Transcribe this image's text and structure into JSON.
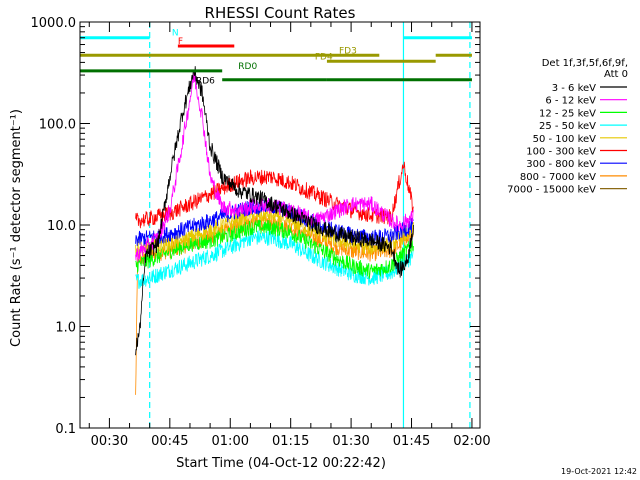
{
  "chart_data": {
    "type": "line",
    "title": "RHESSI Count Rates",
    "xlabel": "Start Time (04-Oct-12 00:22:42)",
    "ylabel": "Count Rate (s⁻¹ detector segment⁻¹)",
    "y_scale": "log",
    "ylim": [
      0.1,
      1000.0
    ],
    "xlim": [
      "00:22:42",
      "02:02:00"
    ],
    "y_ticks": [
      "0.1",
      "1.0",
      "10.0",
      "100.0",
      "1000.0"
    ],
    "x_ticks": [
      "00:30",
      "00:45",
      "01:00",
      "01:15",
      "01:30",
      "01:45",
      "02:00"
    ],
    "legend_header": [
      "Det 1f,3f,5f,6f,9f,",
      "Att 0"
    ],
    "legend_position": "right",
    "timestamp": "19-Oct-2021 12:42",
    "series": [
      {
        "name": "3 - 6 keV",
        "color": "#000000",
        "points": [
          [
            "00:36:30",
            0.6
          ],
          [
            "00:37:30",
            0.9
          ],
          [
            "00:39:00",
            5.0
          ],
          [
            "00:42:00",
            6.5
          ],
          [
            "00:45:00",
            30
          ],
          [
            "00:48:00",
            120
          ],
          [
            "00:51:00",
            330
          ],
          [
            "00:53:00",
            200
          ],
          [
            "00:55:00",
            60
          ],
          [
            "00:58:00",
            30
          ],
          [
            "01:02:00",
            22
          ],
          [
            "01:08:00",
            18
          ],
          [
            "01:15:00",
            13
          ],
          [
            "01:21:00",
            10
          ],
          [
            "01:25:00",
            8.5
          ],
          [
            "01:30:00",
            7.5
          ],
          [
            "01:35:00",
            7
          ],
          [
            "01:40:00",
            6
          ],
          [
            "01:42:00",
            3.5
          ],
          [
            "01:44:00",
            4.5
          ],
          [
            "01:45:30",
            10
          ]
        ]
      },
      {
        "name": "6 - 12 keV",
        "color": "#ff00ff",
        "points": [
          [
            "00:36:30",
            5.0
          ],
          [
            "00:39:00",
            6.0
          ],
          [
            "00:42:00",
            7.5
          ],
          [
            "00:45:00",
            14
          ],
          [
            "00:48:00",
            60
          ],
          [
            "00:51:00",
            300
          ],
          [
            "00:53:00",
            120
          ],
          [
            "00:55:00",
            30
          ],
          [
            "00:58:00",
            15
          ],
          [
            "01:02:00",
            14
          ],
          [
            "01:08:00",
            16
          ],
          [
            "01:15:00",
            14
          ],
          [
            "01:21:00",
            11
          ],
          [
            "01:25:00",
            13
          ],
          [
            "01:30:00",
            16
          ],
          [
            "01:35:00",
            16
          ],
          [
            "01:40:00",
            11
          ],
          [
            "01:42:00",
            10
          ],
          [
            "01:45:30",
            12
          ]
        ]
      },
      {
        "name": "12 - 25 keV",
        "color": "#00ff00",
        "points": [
          [
            "00:36:30",
            4.0
          ],
          [
            "00:40:00",
            4.5
          ],
          [
            "00:45:00",
            5.5
          ],
          [
            "00:50:00",
            6.5
          ],
          [
            "00:55:00",
            7.0
          ],
          [
            "01:00:00",
            8.0
          ],
          [
            "01:05:00",
            9.5
          ],
          [
            "01:10:00",
            9.5
          ],
          [
            "01:15:00",
            8.5
          ],
          [
            "01:20:00",
            6.5
          ],
          [
            "01:25:00",
            5.0
          ],
          [
            "01:30:00",
            4.0
          ],
          [
            "01:35:00",
            3.5
          ],
          [
            "01:40:00",
            4.0
          ],
          [
            "01:45:30",
            6.5
          ]
        ]
      },
      {
        "name": "25 - 50 keV",
        "color": "#00ffff",
        "points": [
          [
            "00:36:30",
            2.8
          ],
          [
            "00:40:00",
            3.0
          ],
          [
            "00:45:00",
            3.6
          ],
          [
            "00:50:00",
            4.2
          ],
          [
            "00:55:00",
            5.0
          ],
          [
            "01:00:00",
            6.0
          ],
          [
            "01:05:00",
            7.5
          ],
          [
            "01:10:00",
            7.5
          ],
          [
            "01:15:00",
            6.5
          ],
          [
            "01:20:00",
            5.0
          ],
          [
            "01:25:00",
            4.0
          ],
          [
            "01:30:00",
            3.3
          ],
          [
            "01:35:00",
            3.0
          ],
          [
            "01:40:00",
            3.4
          ],
          [
            "01:45:30",
            5.0
          ]
        ]
      },
      {
        "name": "50 - 100 keV",
        "color": "#e6c800",
        "points": [
          [
            "00:36:30",
            5.8
          ],
          [
            "00:40:00",
            6.0
          ],
          [
            "00:45:00",
            6.5
          ],
          [
            "00:50:00",
            7.5
          ],
          [
            "00:55:00",
            9.0
          ],
          [
            "01:00:00",
            10.5
          ],
          [
            "01:05:00",
            12.5
          ],
          [
            "01:10:00",
            12.5
          ],
          [
            "01:15:00",
            11
          ],
          [
            "01:20:00",
            9.0
          ],
          [
            "01:25:00",
            7.5
          ],
          [
            "01:30:00",
            6.5
          ],
          [
            "01:35:00",
            6.0
          ],
          [
            "01:40:00",
            6.5
          ],
          [
            "01:45:30",
            9.0
          ]
        ]
      },
      {
        "name": "100 - 300 keV",
        "color": "#ff0000",
        "points": [
          [
            "00:36:30",
            11
          ],
          [
            "00:40:00",
            11.5
          ],
          [
            "00:45:00",
            13
          ],
          [
            "00:50:00",
            16
          ],
          [
            "00:55:00",
            20
          ],
          [
            "01:00:00",
            25
          ],
          [
            "01:05:00",
            29
          ],
          [
            "01:10:00",
            30
          ],
          [
            "01:15:00",
            26
          ],
          [
            "01:20:00",
            21
          ],
          [
            "01:25:00",
            17
          ],
          [
            "01:30:00",
            14
          ],
          [
            "01:35:00",
            12.5
          ],
          [
            "01:40:00",
            12
          ],
          [
            "01:43:00",
            40
          ],
          [
            "01:45:30",
            14
          ]
        ]
      },
      {
        "name": "300 - 800 keV",
        "color": "#0000ff",
        "points": [
          [
            "00:36:30",
            7.2
          ],
          [
            "00:40:00",
            7.5
          ],
          [
            "00:45:00",
            8.2
          ],
          [
            "00:50:00",
            9.5
          ],
          [
            "00:55:00",
            11
          ],
          [
            "01:00:00",
            13
          ],
          [
            "01:05:00",
            15
          ],
          [
            "01:10:00",
            15.5
          ],
          [
            "01:15:00",
            13.5
          ],
          [
            "01:20:00",
            11
          ],
          [
            "01:25:00",
            9.0
          ],
          [
            "01:30:00",
            8.0
          ],
          [
            "01:35:00",
            7.5
          ],
          [
            "01:40:00",
            7.8
          ],
          [
            "01:45:30",
            10
          ]
        ]
      },
      {
        "name": "800 - 7000 keV",
        "color": "#ff8c00",
        "points": [
          [
            "00:36:30",
            0.2
          ],
          [
            "00:37:00",
            4.5
          ],
          [
            "00:40:00",
            5.0
          ],
          [
            "00:45:00",
            5.6
          ],
          [
            "00:50:00",
            6.5
          ],
          [
            "00:55:00",
            7.5
          ],
          [
            "01:00:00",
            9.0
          ],
          [
            "01:05:00",
            10.5
          ],
          [
            "01:10:00",
            10.5
          ],
          [
            "01:15:00",
            9.5
          ],
          [
            "01:20:00",
            7.8
          ],
          [
            "01:25:00",
            6.3
          ],
          [
            "01:30:00",
            5.5
          ],
          [
            "01:35:00",
            5.2
          ],
          [
            "01:40:00",
            5.6
          ],
          [
            "01:45:30",
            8.0
          ]
        ]
      },
      {
        "name": "7000 - 15000 keV",
        "color": "#8b6914",
        "points": []
      }
    ],
    "attenuator_bars": [
      {
        "label": "N",
        "color": "#00ffff",
        "y": 700,
        "segments": [
          [
            "00:22:42",
            "00:40:00"
          ],
          [
            "01:43:00",
            "02:00:00"
          ]
        ]
      },
      {
        "label": "F",
        "color": "#ff0000",
        "y": 580,
        "segments": [
          [
            "00:47:00",
            "01:01:00"
          ]
        ]
      },
      {
        "label": "FD3",
        "color": "#999900",
        "y": 470,
        "segments": [
          [
            "00:22:42",
            "01:37:00"
          ],
          [
            "01:51:00",
            "02:00:00"
          ]
        ]
      },
      {
        "label": "FD4",
        "color": "#999900",
        "y": 410,
        "segments": [
          [
            "01:24:00",
            "01:51:00"
          ]
        ]
      },
      {
        "label": "RD0",
        "color": "#007000",
        "y": 330,
        "segments": [
          [
            "00:22:42",
            "00:58:00"
          ]
        ]
      },
      {
        "label": "RD6",
        "color": "#007000",
        "y": 270,
        "segments": [
          [
            "00:58:00",
            "01:24:00"
          ],
          [
            "01:24:00",
            "01:43:00"
          ],
          [
            "01:43:00",
            "02:00:00"
          ]
        ]
      }
    ],
    "vertical_lines": [
      {
        "time": "00:40:00",
        "color": "#00ffff",
        "style": "dashed"
      },
      {
        "time": "01:43:00",
        "color": "#00ffff",
        "style": "solid"
      },
      {
        "time": "01:59:30",
        "color": "#00ffff",
        "style": "dashed"
      }
    ]
  }
}
